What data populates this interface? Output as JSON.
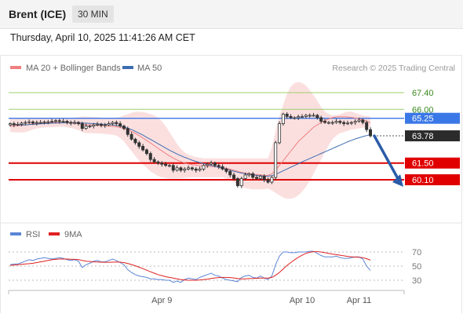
{
  "header": {
    "instrument": "Brent (ICE)",
    "timeframe": "30 MIN",
    "datetime": "Thursday, April 10, 2025 11:41:26 AM CET"
  },
  "legend": {
    "ma20_bb": "MA 20 + Bollinger Bands",
    "ma50": "MA 50",
    "copyright": "Research © 2025 Trading Central"
  },
  "rsi_legend": {
    "rsi": "RSI",
    "ma9": "9MA"
  },
  "colors": {
    "bollinger_band": "#f7c4c4",
    "ma20": "#f08080",
    "ma50": "#3d6db0",
    "pivot": "#3b78e7",
    "support": "#e00000",
    "resistance": "#9ccf6a",
    "arrow": "#2a5ba8",
    "rsi": "#5b86d6",
    "rsi_ma9": "#e02020",
    "candle_body": "#333333"
  },
  "chart_data": [
    {
      "type": "candlestick",
      "ylim": [
        58.2,
        68.6
      ],
      "x_ticks": [
        "Apr 9",
        "Apr 10",
        "Apr 11"
      ],
      "current_price": 63.78,
      "levels": [
        {
          "label": "67.40",
          "value": 67.4,
          "kind": "resistance"
        },
        {
          "label": "66.00",
          "value": 66.0,
          "kind": "resistance"
        },
        {
          "label": "65.25",
          "value": 65.25,
          "kind": "pivot"
        },
        {
          "label": "61.50",
          "value": 61.5,
          "kind": "support"
        },
        {
          "label": "60.10",
          "value": 60.1,
          "kind": "support"
        }
      ],
      "forecast_arrow": {
        "from": 63.78,
        "to": 60.1
      },
      "price_close": [
        64.8,
        64.7,
        64.75,
        64.85,
        64.9,
        64.95,
        64.85,
        64.9,
        64.9,
        64.95,
        64.95,
        65.0,
        65.05,
        65.0,
        65.0,
        64.9,
        64.85,
        64.9,
        64.8,
        64.4,
        64.6,
        64.6,
        64.7,
        64.75,
        64.65,
        64.7,
        64.8,
        64.9,
        64.8,
        64.6,
        64.4,
        63.9,
        63.5,
        63.2,
        62.9,
        62.6,
        62.3,
        61.8,
        61.6,
        61.5,
        61.4,
        61.3,
        61.3,
        60.9,
        61.1,
        60.9,
        61.0,
        61.1,
        61.0,
        60.9,
        61.0,
        61.3,
        61.4,
        61.5,
        61.3,
        61.2,
        61.0,
        60.8,
        60.5,
        60.2,
        59.6,
        60.2,
        60.5,
        60.6,
        60.3,
        60.2,
        60.4,
        60.1,
        59.9,
        60.3,
        63.2,
        64.8,
        65.6,
        65.4,
        65.3,
        65.3,
        65.4,
        65.4,
        65.5,
        65.5,
        65.5,
        65.3,
        65.0,
        64.9,
        64.9,
        64.9,
        65.0,
        64.9,
        64.8,
        64.85,
        64.9,
        65.0,
        65.1,
        64.9,
        64.3,
        63.78
      ],
      "ma20": [
        64.6,
        64.62,
        64.64,
        64.66,
        64.7,
        64.74,
        64.78,
        64.82,
        64.86,
        64.88,
        64.9,
        64.9,
        64.9,
        64.9,
        64.88,
        64.86,
        64.84,
        64.82,
        64.8,
        64.76,
        64.72,
        64.7,
        64.68,
        64.66,
        64.64,
        64.62,
        64.6,
        64.58,
        64.54,
        64.48,
        64.4,
        64.28,
        64.14,
        63.98,
        63.8,
        63.6,
        63.4,
        63.18,
        62.96,
        62.74,
        62.52,
        62.3,
        62.1,
        61.92,
        61.76,
        61.62,
        61.5,
        61.42,
        61.36,
        61.32,
        61.28,
        61.26,
        61.24,
        61.22,
        61.2,
        61.16,
        61.12,
        61.06,
        60.98,
        60.9,
        60.8,
        60.72,
        60.66,
        60.62,
        60.58,
        60.54,
        60.5,
        60.48,
        60.46,
        60.6,
        60.9,
        61.3,
        61.7,
        62.1,
        62.5,
        62.9,
        63.3,
        63.6,
        63.9,
        64.2,
        64.5,
        64.7,
        64.9,
        65.05,
        65.2,
        65.3,
        65.36,
        65.38,
        65.38,
        65.36,
        65.32,
        65.28,
        65.22,
        65.14,
        65.02,
        64.88
      ],
      "bb_upper": [
        65.2,
        65.2,
        65.2,
        65.2,
        65.22,
        65.24,
        65.26,
        65.28,
        65.3,
        65.3,
        65.3,
        65.3,
        65.28,
        65.26,
        65.24,
        65.24,
        65.26,
        65.3,
        65.35,
        65.4,
        65.4,
        65.38,
        65.36,
        65.34,
        65.3,
        65.28,
        65.26,
        65.26,
        65.3,
        65.36,
        65.5,
        65.6,
        65.7,
        65.8,
        65.8,
        65.76,
        65.7,
        65.6,
        65.5,
        65.3,
        65.0,
        64.6,
        64.1,
        63.6,
        63.1,
        62.7,
        62.4,
        62.2,
        62.1,
        62.0,
        61.95,
        61.9,
        61.9,
        61.9,
        61.9,
        61.9,
        61.9,
        61.9,
        61.9,
        61.9,
        61.9,
        61.9,
        61.9,
        61.9,
        61.9,
        61.9,
        61.9,
        61.9,
        61.9,
        62.8,
        64.2,
        65.4,
        66.4,
        67.3,
        67.9,
        68.2,
        68.3,
        68.2,
        68.0,
        67.6,
        67.2,
        66.7,
        66.2,
        65.8,
        65.6,
        65.5,
        65.5,
        65.6,
        65.7,
        65.8,
        65.8,
        65.7,
        65.6,
        65.5,
        65.45,
        65.4
      ],
      "bb_lower": [
        64.1,
        64.08,
        64.06,
        64.06,
        64.1,
        64.2,
        64.3,
        64.4,
        64.45,
        64.48,
        64.5,
        64.5,
        64.52,
        64.54,
        64.54,
        64.5,
        64.44,
        64.36,
        64.26,
        64.1,
        64.0,
        64.0,
        64.0,
        63.98,
        63.96,
        63.94,
        63.9,
        63.86,
        63.8,
        63.6,
        63.3,
        62.9,
        62.5,
        62.1,
        61.7,
        61.4,
        61.1,
        60.8,
        60.6,
        60.4,
        60.3,
        60.25,
        60.2,
        60.2,
        60.2,
        60.22,
        60.25,
        60.28,
        60.3,
        60.3,
        60.3,
        60.3,
        60.3,
        60.3,
        60.3,
        60.3,
        60.3,
        60.2,
        60.1,
        59.9,
        59.7,
        59.5,
        59.4,
        59.35,
        59.3,
        59.3,
        59.3,
        59.3,
        59.35,
        59.2,
        59.0,
        58.8,
        58.6,
        58.5,
        58.5,
        58.6,
        58.8,
        59.1,
        59.5,
        60.0,
        60.6,
        61.2,
        61.8,
        62.4,
        63.0,
        63.5,
        63.8,
        64.0,
        64.1,
        64.2,
        64.3,
        64.35,
        64.4,
        64.45,
        64.5,
        64.5
      ],
      "ma50": [
        64.75,
        64.72,
        64.7,
        64.7,
        64.7,
        64.72,
        64.74,
        64.76,
        64.78,
        64.8,
        64.82,
        64.84,
        64.85,
        64.86,
        64.87,
        64.88,
        64.88,
        64.88,
        64.88,
        64.86,
        64.84,
        64.82,
        64.8,
        64.78,
        64.76,
        64.74,
        64.72,
        64.7,
        64.66,
        64.6,
        64.52,
        64.42,
        64.3,
        64.16,
        64.0,
        63.84,
        63.66,
        63.48,
        63.3,
        63.12,
        62.94,
        62.76,
        62.58,
        62.42,
        62.26,
        62.12,
        61.98,
        61.86,
        61.74,
        61.64,
        61.54,
        61.46,
        61.38,
        61.3,
        61.22,
        61.14,
        61.06,
        60.98,
        60.9,
        60.82,
        60.74,
        60.66,
        60.6,
        60.54,
        60.5,
        60.46,
        60.43,
        60.41,
        60.4,
        60.45,
        60.55,
        60.7,
        60.85,
        61.0,
        61.15,
        61.3,
        61.45,
        61.6,
        61.74,
        61.88,
        62.02,
        62.16,
        62.3,
        62.44,
        62.58,
        62.72,
        62.86,
        63.0,
        63.14,
        63.28,
        63.4,
        63.52,
        63.62,
        63.72,
        63.8,
        63.88
      ]
    },
    {
      "type": "line",
      "title": "RSI",
      "ylim": [
        20,
        80
      ],
      "y_ticks": [
        70,
        50,
        30
      ],
      "series": [
        {
          "name": "RSI",
          "values": [
            52,
            53,
            53,
            55,
            57,
            59,
            58,
            60,
            61,
            62,
            61,
            60,
            61,
            62,
            61,
            59,
            58,
            59,
            57,
            48,
            52,
            54,
            57,
            58,
            56,
            56,
            58,
            60,
            58,
            55,
            52,
            45,
            41,
            38,
            36,
            35,
            34,
            32,
            32,
            31,
            31,
            30,
            30,
            27,
            29,
            27,
            31,
            33,
            32,
            31,
            34,
            36,
            38,
            40,
            37,
            36,
            33,
            31,
            30,
            29,
            28,
            34,
            36,
            37,
            34,
            33,
            36,
            33,
            31,
            36,
            52,
            64,
            70,
            70,
            69,
            69,
            70,
            70,
            70,
            71,
            71,
            68,
            65,
            63,
            63,
            63,
            64,
            62,
            61,
            61,
            62,
            63,
            63,
            60,
            50,
            44
          ]
        },
        {
          "name": "9MA",
          "values": [
            51,
            51.5,
            52,
            52.5,
            53,
            53.5,
            54,
            55,
            56,
            57,
            58,
            59,
            59.5,
            60,
            60,
            60,
            59.8,
            59.6,
            59.3,
            58,
            57,
            56.5,
            56,
            55.8,
            55.6,
            55.4,
            55.4,
            55.6,
            55.8,
            55.6,
            55,
            53.8,
            52.2,
            50.4,
            48.4,
            46.4,
            44.2,
            42,
            40,
            38,
            36.5,
            35,
            34,
            33,
            32,
            31,
            30.5,
            30,
            30,
            30,
            30.5,
            31,
            31.5,
            32.5,
            33.2,
            33.8,
            34,
            34,
            33.8,
            33.2,
            32.5,
            32,
            32,
            32.3,
            32.5,
            32.8,
            33,
            33,
            33,
            34,
            37,
            41,
            46,
            51,
            55,
            59,
            62.5,
            65.5,
            68,
            69.5,
            70.5,
            70.5,
            70,
            69,
            68,
            67,
            66.2,
            65.4,
            64.5,
            63.8,
            63.2,
            62.8,
            62.5,
            62,
            60.5,
            58.5
          ]
        }
      ]
    }
  ]
}
